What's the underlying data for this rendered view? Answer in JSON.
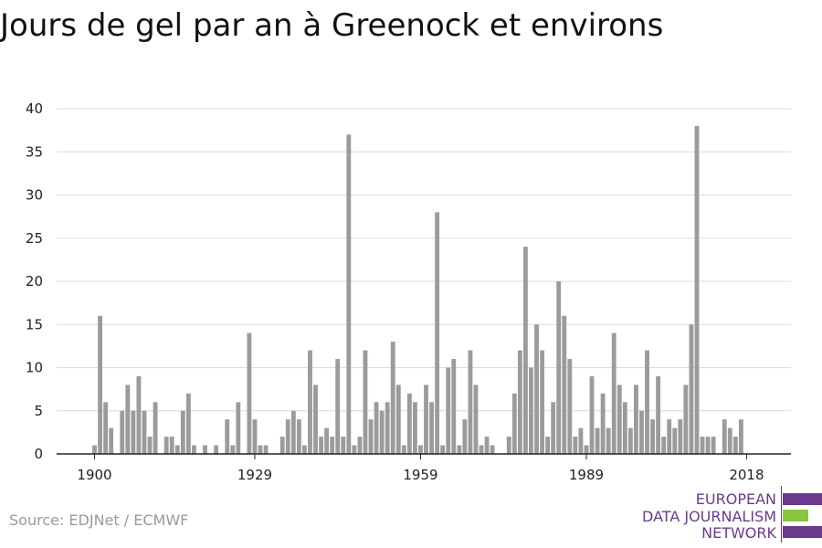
{
  "title": "Jours de gel par an à Greenock et environs",
  "source": "Source: EDJNet / ECMWF",
  "logo": {
    "line1": "EUROPEAN",
    "line2": "DATA JOURNALISM",
    "line3": "NETWORK",
    "colors": {
      "purple": "#6b3a8c",
      "green": "#8bc53f"
    }
  },
  "chart_data": {
    "type": "bar",
    "xlabel": "",
    "ylabel": "",
    "ylim": [
      0,
      40
    ],
    "yticks": [
      0,
      5,
      10,
      15,
      20,
      25,
      30,
      35,
      40
    ],
    "xticks": [
      1900,
      1929,
      1959,
      1989,
      2018
    ],
    "grid": true,
    "bar_color": "#9b9b9b",
    "x": [
      1900,
      1901,
      1902,
      1903,
      1904,
      1905,
      1906,
      1907,
      1908,
      1909,
      1910,
      1911,
      1912,
      1913,
      1914,
      1915,
      1916,
      1917,
      1918,
      1919,
      1920,
      1921,
      1922,
      1923,
      1924,
      1925,
      1926,
      1927,
      1928,
      1929,
      1930,
      1931,
      1932,
      1933,
      1934,
      1935,
      1936,
      1937,
      1938,
      1939,
      1940,
      1941,
      1942,
      1943,
      1944,
      1945,
      1946,
      1947,
      1948,
      1949,
      1950,
      1951,
      1952,
      1953,
      1954,
      1955,
      1956,
      1957,
      1958,
      1959,
      1960,
      1961,
      1962,
      1963,
      1964,
      1965,
      1966,
      1967,
      1968,
      1969,
      1970,
      1971,
      1972,
      1973,
      1974,
      1975,
      1976,
      1977,
      1978,
      1979,
      1980,
      1981,
      1982,
      1983,
      1984,
      1985,
      1986,
      1987,
      1988,
      1989,
      1990,
      1991,
      1992,
      1993,
      1994,
      1995,
      1996,
      1997,
      1998,
      1999,
      2000,
      2001,
      2002,
      2003,
      2004,
      2005,
      2006,
      2007,
      2008,
      2009,
      2010,
      2011,
      2012,
      2013,
      2014,
      2015,
      2016,
      2017,
      2018
    ],
    "values": [
      1,
      16,
      6,
      3,
      0,
      5,
      8,
      5,
      9,
      5,
      2,
      6,
      0,
      2,
      2,
      1,
      5,
      7,
      1,
      0,
      1,
      0,
      1,
      0,
      4,
      1,
      6,
      0,
      14,
      4,
      1,
      1,
      0,
      0,
      2,
      4,
      5,
      4,
      1,
      12,
      8,
      2,
      3,
      2,
      11,
      2,
      37,
      1,
      2,
      12,
      4,
      6,
      5,
      6,
      13,
      8,
      1,
      7,
      6,
      1,
      8,
      6,
      28,
      1,
      10,
      11,
      1,
      4,
      12,
      8,
      1,
      2,
      1,
      0,
      0,
      2,
      7,
      12,
      24,
      10,
      15,
      12,
      2,
      6,
      20,
      16,
      11,
      2,
      3,
      1,
      9,
      3,
      7,
      3,
      14,
      8,
      6,
      3,
      8,
      5,
      12,
      4,
      9,
      2,
      4,
      3,
      4,
      8,
      15,
      38,
      2,
      2,
      2,
      0,
      4,
      3,
      2,
      4,
      0
    ]
  }
}
